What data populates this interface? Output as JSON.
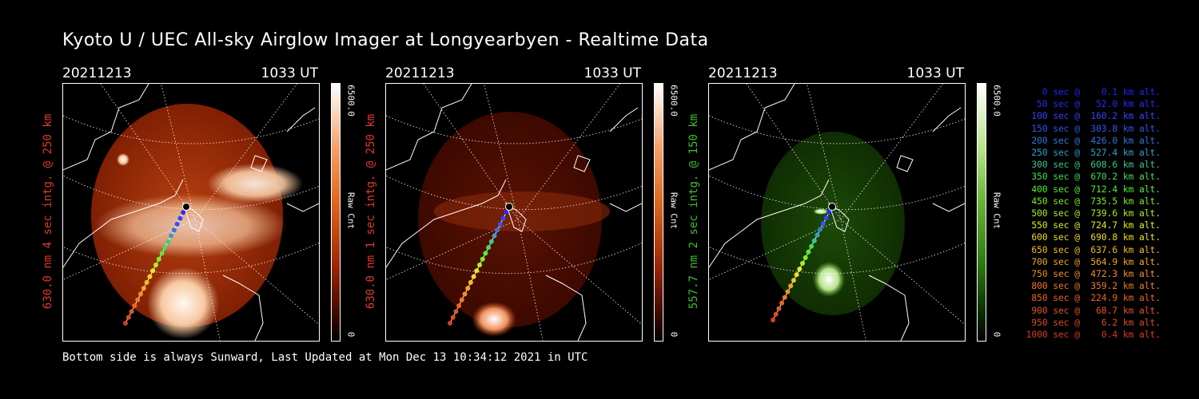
{
  "title": "Kyoto U / UEC All-sky Airglow Imager at Longyearbyen - Realtime Data",
  "footer": "Bottom side is always Sunward, Last Updated at Mon Dec 13 10:34:12 2021 in UTC",
  "panels": [
    {
      "date": "20211213",
      "time": "1033 UT",
      "label": "630.0 nm 4 sec intg. @ 250 km",
      "label_color": "#e0392b",
      "cbar_max": "6500.0",
      "cbar_min": "0",
      "cbar_label": "Raw Cnt",
      "cbar_colors": [
        "#ffffff",
        "#f4a06a",
        "#e06a20",
        "#a02808",
        "#3a0800",
        "#000000"
      ]
    },
    {
      "date": "20211213",
      "time": "1033 UT",
      "label": "630.0 nm 1 sec intg. @ 250 km",
      "label_color": "#e0392b",
      "cbar_max": "6500.0",
      "cbar_min": "0",
      "cbar_label": "Raw Cnt",
      "cbar_colors": [
        "#ffffff",
        "#f4a06a",
        "#e06a20",
        "#a02808",
        "#3a0800",
        "#000000"
      ]
    },
    {
      "date": "20211213",
      "time": "1033 UT",
      "label": "557.7 nm 2 sec intg. @ 150 km",
      "label_color": "#3fbf2f",
      "cbar_max": "6500.0",
      "cbar_min": "0",
      "cbar_label": "Raw Cnt",
      "cbar_colors": [
        "#ffffff",
        "#b8e48a",
        "#6cb43a",
        "#2e7a10",
        "#0a2a02",
        "#000000"
      ]
    }
  ],
  "trajectory": [
    {
      "text": "   0 sec @    0.1 km alt.",
      "color": "#2222ff"
    },
    {
      "text": "  50 sec @   52.0 km alt.",
      "color": "#2a2aff"
    },
    {
      "text": " 100 sec @  160.2 km alt.",
      "color": "#3344ff"
    },
    {
      "text": " 150 sec @  303.8 km alt.",
      "color": "#3355ee"
    },
    {
      "text": " 200 sec @  426.0 km alt.",
      "color": "#3377dd"
    },
    {
      "text": " 250 sec @  527.4 km alt.",
      "color": "#33a0c8"
    },
    {
      "text": " 300 sec @  608.6 km alt.",
      "color": "#3ac888"
    },
    {
      "text": " 350 sec @  670.2 km alt.",
      "color": "#44dd55"
    },
    {
      "text": " 400 sec @  712.4 km alt.",
      "color": "#55ee33"
    },
    {
      "text": " 450 sec @  735.5 km alt.",
      "color": "#77f022"
    },
    {
      "text": " 500 sec @  739.6 km alt.",
      "color": "#a8f022"
    },
    {
      "text": " 550 sec @  724.7 km alt.",
      "color": "#ddee22"
    },
    {
      "text": " 600 sec @  690.8 km alt.",
      "color": "#f0dd22"
    },
    {
      "text": " 650 sec @  637.6 km alt.",
      "color": "#f0c022"
    },
    {
      "text": " 700 sec @  564.9 km alt.",
      "color": "#f0a822"
    },
    {
      "text": " 750 sec @  472.3 km alt.",
      "color": "#f09022"
    },
    {
      "text": " 800 sec @  359.2 km alt.",
      "color": "#f07a22"
    },
    {
      "text": " 850 sec @  224.9 km alt.",
      "color": "#f06422"
    },
    {
      "text": " 900 sec @   68.7 km alt.",
      "color": "#e85522"
    },
    {
      "text": " 950 sec @    6.2 km alt.",
      "color": "#e04a22"
    },
    {
      "text": "1000 sec @    0.4 km alt.",
      "color": "#dd3a22"
    }
  ]
}
